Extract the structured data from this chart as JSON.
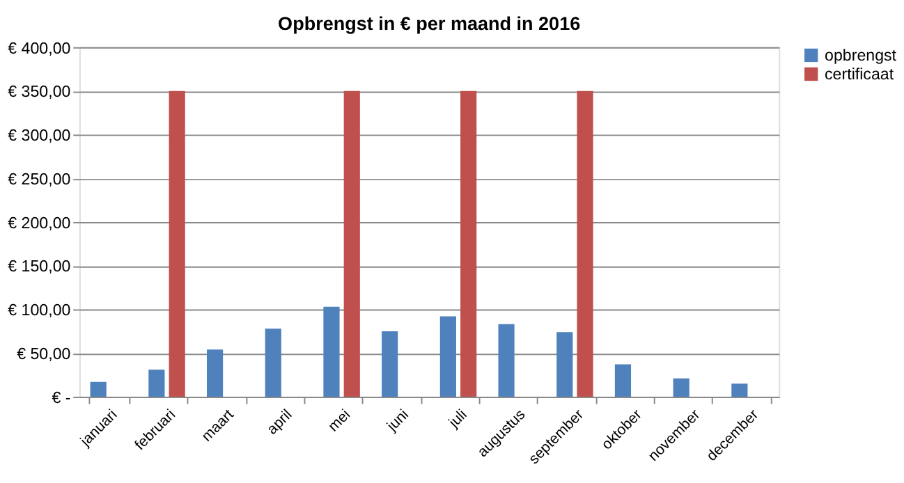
{
  "chart_data": {
    "type": "bar",
    "title": "Opbrengst in € per maand in 2016",
    "categories": [
      "januari",
      "februari",
      "maart",
      "april",
      "mei",
      "juni",
      "juli",
      "augustus",
      "september",
      "oktober",
      "november",
      "december"
    ],
    "series": [
      {
        "name": "opbrengst",
        "color": "#4f81bd",
        "values": [
          17,
          31,
          54,
          78,
          103,
          75,
          92,
          83,
          74,
          37,
          21,
          15
        ]
      },
      {
        "name": "certificaat",
        "color": "#c0504d",
        "values": [
          null,
          350,
          null,
          null,
          350,
          null,
          350,
          null,
          350,
          null,
          null,
          null
        ]
      }
    ],
    "ylim": [
      0,
      400
    ],
    "yticks": [
      {
        "value": 0,
        "label": "€ -"
      },
      {
        "value": 50,
        "label": "€ 50,00"
      },
      {
        "value": 100,
        "label": "€ 100,00"
      },
      {
        "value": 150,
        "label": "€ 150,00"
      },
      {
        "value": 200,
        "label": "€ 200,00"
      },
      {
        "value": 250,
        "label": "€ 250,00"
      },
      {
        "value": 300,
        "label": "€ 300,00"
      },
      {
        "value": 350,
        "label": "€ 350,00"
      },
      {
        "value": 400,
        "label": "€ 400,00"
      }
    ],
    "grid": "y",
    "legend": "right"
  }
}
